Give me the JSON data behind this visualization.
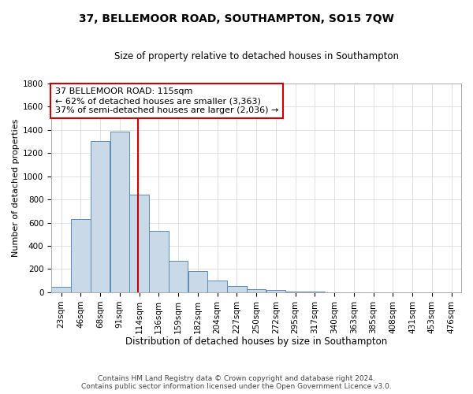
{
  "title": "37, BELLEMOOR ROAD, SOUTHAMPTON, SO15 7QW",
  "subtitle": "Size of property relative to detached houses in Southampton",
  "xlabel": "Distribution of detached houses by size in Southampton",
  "ylabel": "Number of detached properties",
  "property_label": "37 BELLEMOOR ROAD: 115sqm",
  "annotation_line1": "← 62% of detached houses are smaller (3,363)",
  "annotation_line2": "37% of semi-detached houses are larger (2,036) →",
  "footer_line1": "Contains HM Land Registry data © Crown copyright and database right 2024.",
  "footer_line2": "Contains public sector information licensed under the Open Government Licence v3.0.",
  "bin_edges": [
    11.5,
    34.5,
    57.5,
    80.5,
    103.5,
    126.5,
    149.5,
    172.5,
    195.5,
    218.5,
    241.5,
    264.5,
    287.5,
    310.5,
    333.5,
    356.5,
    379.5,
    402.5,
    425.5,
    448.5,
    471.5,
    494.5
  ],
  "bin_labels": [
    "23sqm",
    "46sqm",
    "68sqm",
    "91sqm",
    "114sqm",
    "136sqm",
    "159sqm",
    "182sqm",
    "204sqm",
    "227sqm",
    "250sqm",
    "272sqm",
    "295sqm",
    "317sqm",
    "340sqm",
    "363sqm",
    "385sqm",
    "408sqm",
    "431sqm",
    "453sqm",
    "476sqm"
  ],
  "heights": [
    50,
    630,
    1300,
    1380,
    840,
    530,
    270,
    185,
    100,
    55,
    30,
    20,
    10,
    5,
    3,
    2,
    1,
    0,
    0,
    0,
    0
  ],
  "bar_color": "#c9d9e8",
  "bar_edge_color": "#5b8db8",
  "vline_x": 114,
  "vline_color": "#cc0000",
  "box_color": "#cc0000",
  "ylim": [
    0,
    1800
  ],
  "xlim": [
    11.5,
    494.5
  ],
  "yticks": [
    0,
    200,
    400,
    600,
    800,
    1000,
    1200,
    1400,
    1600,
    1800
  ],
  "title_fontsize": 10,
  "subtitle_fontsize": 8.5,
  "xlabel_fontsize": 8.5,
  "ylabel_fontsize": 8,
  "tick_fontsize": 7.5,
  "annotation_fontsize": 8,
  "footer_fontsize": 6.5,
  "background_color": "#ffffff",
  "grid_color": "#d0d8e0"
}
